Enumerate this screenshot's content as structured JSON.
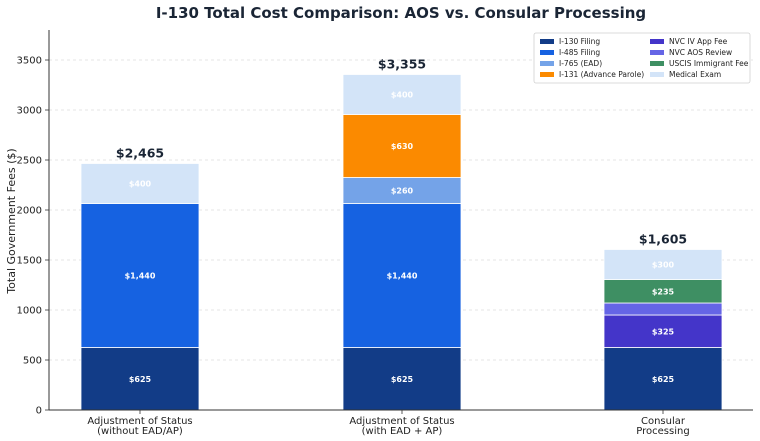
{
  "chart_data": {
    "type": "bar",
    "stacked": true,
    "title": "I-130 Total Cost Comparison: AOS vs. Consular Processing",
    "ylabel": "Total Government Fees ($)",
    "xlabel": "",
    "ylim": [
      0,
      3800
    ],
    "yticks": [
      0,
      500,
      1000,
      1500,
      2000,
      2500,
      3000,
      3500
    ],
    "grid": "horizontal-dashed",
    "legend_position": "top-right",
    "categories": [
      [
        "Adjustment of Status",
        "(without EAD/AP)"
      ],
      [
        "Adjustment of Status",
        "(with EAD + AP)"
      ],
      [
        "Consular",
        "Processing"
      ]
    ],
    "totals": [
      "$2,465",
      "$3,355",
      "$1,605"
    ],
    "series": [
      {
        "name": "I-130 Filing",
        "color": "#123c87",
        "values": [
          625,
          625,
          625
        ],
        "labels": [
          "$625",
          "$625",
          "$625"
        ]
      },
      {
        "name": "I-485 Filing",
        "color": "#1662e1",
        "values": [
          1440,
          1440,
          0
        ],
        "labels": [
          "$1,440",
          "$1,440",
          ""
        ]
      },
      {
        "name": "I-765 (EAD)",
        "color": "#74a3e8",
        "values": [
          0,
          260,
          0
        ],
        "labels": [
          "",
          "$260",
          ""
        ]
      },
      {
        "name": "I-131 (Advance Parole)",
        "color": "#fb8a00",
        "values": [
          0,
          630,
          0
        ],
        "labels": [
          "",
          "$630",
          ""
        ]
      },
      {
        "name": "NVC IV App Fee",
        "color": "#4435c9",
        "values": [
          0,
          0,
          325
        ],
        "labels": [
          "",
          "",
          "$325"
        ]
      },
      {
        "name": "NVC AOS Review",
        "color": "#6565e6",
        "values": [
          0,
          0,
          120
        ],
        "labels": [
          "",
          "",
          ""
        ]
      },
      {
        "name": "USCIS Immigrant Fee",
        "color": "#3e8f63",
        "values": [
          0,
          0,
          235
        ],
        "labels": [
          "",
          "",
          "$235"
        ]
      },
      {
        "name": "Medical Exam",
        "color": "#d3e4f8",
        "values": [
          400,
          400,
          300
        ],
        "labels": [
          "$400",
          "$400",
          "$300"
        ]
      }
    ]
  }
}
